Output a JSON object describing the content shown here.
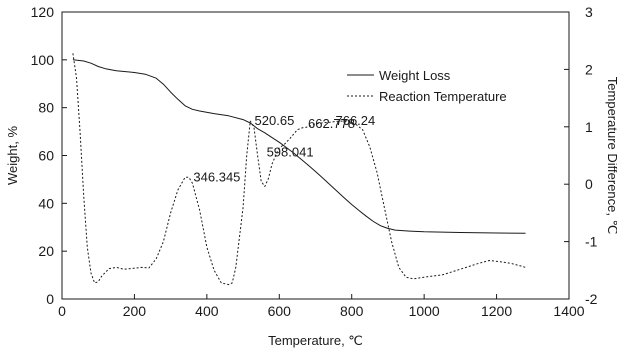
{
  "chart_data": {
    "type": "line",
    "title": "",
    "xlabel": "Temperature, ℃",
    "ylabel": "Weight, %",
    "y2label": "Temperature Difference, ℃",
    "xlim": [
      0,
      1400
    ],
    "ylim": [
      0,
      120
    ],
    "y2lim": [
      -2,
      3
    ],
    "x_ticks": [
      "0",
      "200",
      "400",
      "600",
      "800",
      "1000",
      "1200",
      "1400"
    ],
    "y_ticks": [
      "0",
      "20",
      "40",
      "60",
      "80",
      "100",
      "120"
    ],
    "y2_ticks": [
      "-2",
      "-1",
      "0",
      "1",
      "2",
      "3"
    ],
    "grid": false,
    "legend_position": "top-right",
    "series": [
      {
        "name": "Weight Loss",
        "axis": "left",
        "style": "solid",
        "color": "#1a1a1a",
        "points": [
          [
            30,
            100
          ],
          [
            60,
            99.5
          ],
          [
            80,
            98.6
          ],
          [
            100,
            97.2
          ],
          [
            120,
            96.3
          ],
          [
            150,
            95.4
          ],
          [
            200,
            94.7
          ],
          [
            230,
            94
          ],
          [
            260,
            92.3
          ],
          [
            280,
            89.8
          ],
          [
            300,
            86.5
          ],
          [
            320,
            83.5
          ],
          [
            340,
            80.8
          ],
          [
            360,
            79.3
          ],
          [
            380,
            78.6
          ],
          [
            420,
            77.5
          ],
          [
            460,
            76.6
          ],
          [
            500,
            75
          ],
          [
            520,
            73.6
          ],
          [
            540,
            71.2
          ],
          [
            560,
            69.5
          ],
          [
            580,
            67.5
          ],
          [
            600,
            65.5
          ],
          [
            620,
            63.3
          ],
          [
            640,
            61
          ],
          [
            660,
            58.5
          ],
          [
            680,
            55.9
          ],
          [
            700,
            53.3
          ],
          [
            720,
            50.6
          ],
          [
            740,
            47.8
          ],
          [
            760,
            45
          ],
          [
            780,
            42.2
          ],
          [
            800,
            39.5
          ],
          [
            820,
            37
          ],
          [
            840,
            34.6
          ],
          [
            860,
            32.4
          ],
          [
            880,
            30.6
          ],
          [
            900,
            29.5
          ],
          [
            920,
            28.8
          ],
          [
            960,
            28.4
          ],
          [
            1000,
            28.1
          ],
          [
            1100,
            27.8
          ],
          [
            1200,
            27.6
          ],
          [
            1280,
            27.5
          ]
        ]
      },
      {
        "name": "Reaction Temperature",
        "axis": "right",
        "style": "dotted",
        "color": "#1a1a1a",
        "points": [
          [
            30,
            2.28
          ],
          [
            40,
            1.85
          ],
          [
            50,
            0.9
          ],
          [
            60,
            -0.2
          ],
          [
            70,
            -1.1
          ],
          [
            80,
            -1.55
          ],
          [
            90,
            -1.72
          ],
          [
            100,
            -1.7
          ],
          [
            110,
            -1.6
          ],
          [
            130,
            -1.47
          ],
          [
            150,
            -1.45
          ],
          [
            170,
            -1.48
          ],
          [
            190,
            -1.47
          ],
          [
            220,
            -1.45
          ],
          [
            240,
            -1.46
          ],
          [
            260,
            -1.3
          ],
          [
            280,
            -1.0
          ],
          [
            300,
            -0.5
          ],
          [
            320,
            -0.1
          ],
          [
            340,
            0.12
          ],
          [
            350,
            0.12
          ],
          [
            360,
            0.02
          ],
          [
            380,
            -0.45
          ],
          [
            400,
            -1.1
          ],
          [
            420,
            -1.5
          ],
          [
            440,
            -1.72
          ],
          [
            460,
            -1.75
          ],
          [
            470,
            -1.72
          ],
          [
            480,
            -1.45
          ],
          [
            500,
            -0.4
          ],
          [
            510,
            0.5
          ],
          [
            520,
            1.1
          ],
          [
            530,
            1.0
          ],
          [
            540,
            0.5
          ],
          [
            550,
            0.05
          ],
          [
            560,
            -0.04
          ],
          [
            570,
            0.1
          ],
          [
            580,
            0.35
          ],
          [
            598,
            0.62
          ],
          [
            615,
            0.7
          ],
          [
            630,
            0.8
          ],
          [
            650,
            0.95
          ],
          [
            663,
            0.98
          ],
          [
            680,
            1.0
          ],
          [
            700,
            1.05
          ],
          [
            720,
            1.07
          ],
          [
            740,
            1.08
          ],
          [
            766,
            1.1
          ],
          [
            790,
            1.1
          ],
          [
            810,
            1.05
          ],
          [
            830,
            0.95
          ],
          [
            850,
            0.65
          ],
          [
            870,
            0.2
          ],
          [
            890,
            -0.4
          ],
          [
            910,
            -1.0
          ],
          [
            930,
            -1.45
          ],
          [
            950,
            -1.62
          ],
          [
            970,
            -1.65
          ],
          [
            1000,
            -1.62
          ],
          [
            1050,
            -1.58
          ],
          [
            1100,
            -1.48
          ],
          [
            1150,
            -1.38
          ],
          [
            1180,
            -1.33
          ],
          [
            1210,
            -1.35
          ],
          [
            1240,
            -1.38
          ],
          [
            1270,
            -1.43
          ],
          [
            1280,
            -1.45
          ]
        ]
      }
    ],
    "annotations": [
      {
        "text": "346.345",
        "x": 346.345,
        "y2": 0.12
      },
      {
        "text": "520.65",
        "x": 520.65,
        "y2": 1.1
      },
      {
        "text": "598.041",
        "x": 598.041,
        "y2": 0.62
      },
      {
        "text": "662.778",
        "x": 662.778,
        "y2": 0.98
      },
      {
        "text": "766.24",
        "x": 766.24,
        "y2": 1.1
      }
    ]
  }
}
